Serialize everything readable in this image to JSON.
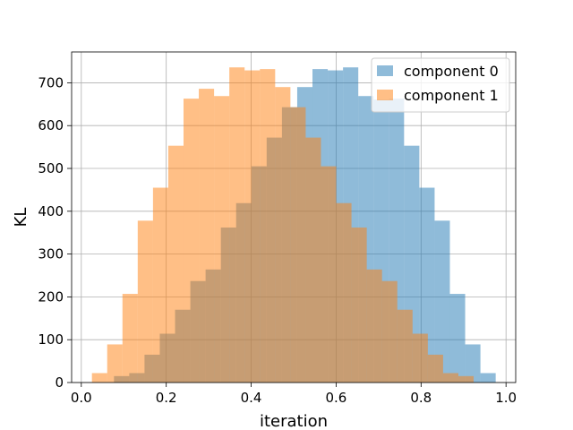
{
  "chart_data": {
    "type": "histogram",
    "xlabel": "iteration",
    "ylabel": "KL",
    "xlim": [
      -0.0228,
      1.0228
    ],
    "ylim": [
      0,
      772
    ],
    "xticks": [
      0.0,
      0.2,
      0.4,
      0.6,
      0.8,
      1.0
    ],
    "xtick_labels": [
      "0.0",
      "0.2",
      "0.4",
      "0.6",
      "0.8",
      "1.0"
    ],
    "yticks": [
      0,
      100,
      200,
      300,
      400,
      500,
      600,
      700
    ],
    "ytick_labels": [
      "0",
      "100",
      "200",
      "300",
      "400",
      "500",
      "600",
      "700"
    ],
    "grid": true,
    "legend_position": "upper-right",
    "bin_start": 0.025,
    "bin_width": 0.03595,
    "series": [
      {
        "name": "component 0",
        "color": "#1f77b4",
        "alpha": 0.5,
        "bin_start": 0.07694,
        "counts": [
          15,
          22,
          65,
          114,
          170,
          237,
          264,
          362,
          419,
          505,
          572,
          643,
          690,
          732,
          729,
          736,
          669,
          661,
          663,
          553,
          455,
          378,
          207,
          89,
          22
        ]
      },
      {
        "name": "component 1",
        "color": "#ff7f0e",
        "alpha": 0.5,
        "bin_start": 0.025,
        "counts": [
          22,
          89,
          207,
          378,
          455,
          553,
          663,
          686,
          669,
          736,
          729,
          732,
          690,
          643,
          572,
          505,
          419,
          362,
          264,
          237,
          170,
          114,
          65,
          22,
          15
        ]
      }
    ]
  }
}
